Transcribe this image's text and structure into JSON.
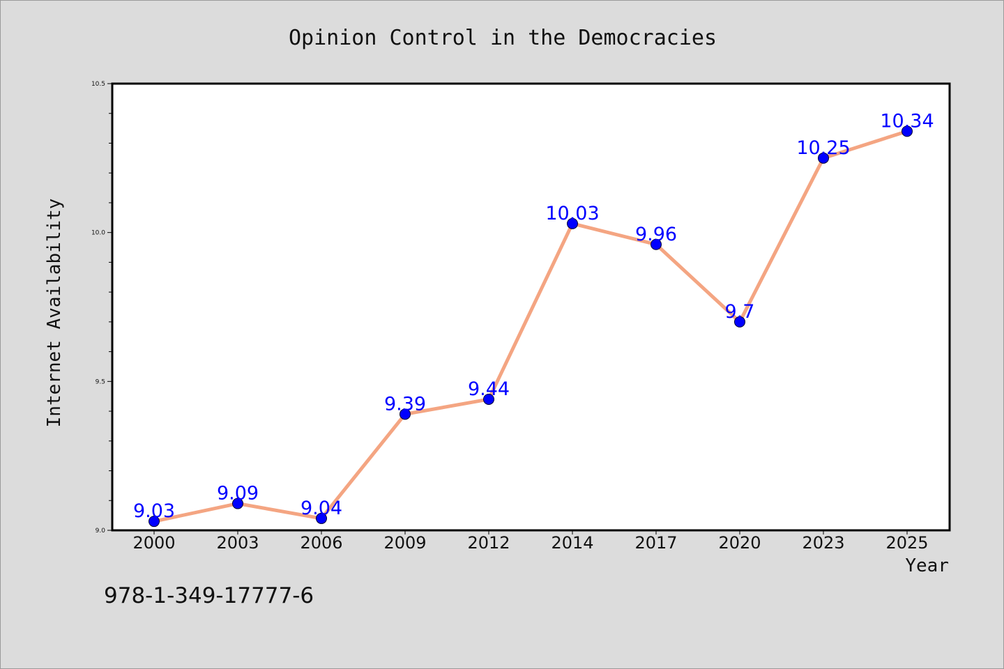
{
  "chart_data": {
    "type": "line",
    "title": "Opinion Control in the Democracies",
    "xlabel": "Year",
    "ylabel": "Internet Availability",
    "categories": [
      "2000",
      "2003",
      "2006",
      "2009",
      "2012",
      "2014",
      "2017",
      "2020",
      "2023",
      "2025"
    ],
    "series": [
      {
        "values": [
          9.03,
          9.09,
          9.04,
          9.39,
          9.44,
          10.03,
          9.96,
          9.7,
          10.25,
          10.34
        ],
        "data_labels": [
          "9.03",
          "9.09",
          "9.04",
          "9.39",
          "9.44",
          "10.03",
          "9.96",
          "9.7",
          "10.25",
          "10.34"
        ]
      }
    ],
    "ylim": [
      9.0,
      10.5
    ],
    "y_ticks": [
      "9.0",
      "9.5",
      "10.0",
      "10.5"
    ],
    "grid": false,
    "line_color": "#f4a582",
    "marker_color": "#0000ff",
    "label_color": "#0000ff",
    "background_color": "#dcdcdc"
  },
  "footer": {
    "isbn": "978-1-349-17777-6"
  }
}
